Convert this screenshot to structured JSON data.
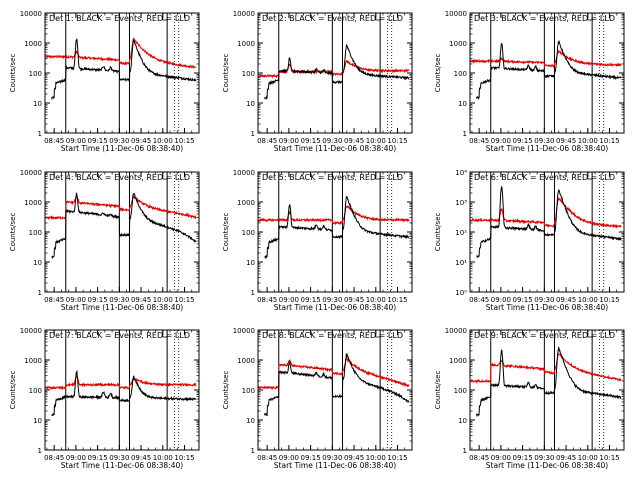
{
  "chart_data": {
    "type": "line",
    "x_tick_labels": [
      "08:45",
      "09:00",
      "09:15",
      "09:30",
      "09:45",
      "10:00",
      "10:15"
    ],
    "x_ticks_minutes": [
      525,
      540,
      555,
      570,
      585,
      600,
      615
    ],
    "xlim_minutes": [
      518.67,
      625
    ],
    "xlabel": "Start Time (11-Dec-06 08:38:40)",
    "ylabel": "Counts/sec",
    "yscale": "log",
    "ylim": [
      1,
      10000
    ],
    "y_tick_labels_linear": [
      "1",
      "10",
      "100",
      "1000",
      "10000"
    ],
    "y_tick_labels_exp": [
      "10⁰",
      "10¹",
      "10²",
      "10³",
      "10⁴"
    ],
    "vertical_lines_solid_minutes": [
      533,
      570,
      577,
      603
    ],
    "vertical_lines_dotted_minutes": [
      608,
      611
    ],
    "series_colors": {
      "events": "#000000",
      "lld": "#dd0000"
    },
    "panels": [
      {
        "title": "Det 1: BLACK = Events, RED = LLD",
        "y_tick_style": "linear",
        "events": {
          "pre": 15,
          "base": 90,
          "start": 150,
          "end": 60,
          "peak1": 1300,
          "peak2": 1200,
          "dip": 60
        },
        "lld": {
          "base": 350,
          "start": 350,
          "end": 150,
          "peak1": 650,
          "peak2": 2500
        }
      },
      {
        "title": "Det 2: BLACK = Events, RED = LLD",
        "y_tick_style": "linear",
        "events": {
          "pre": 15,
          "base": 60,
          "start": 120,
          "end": 70,
          "peak1": 250,
          "peak2": 800,
          "dip": 50
        },
        "lld": {
          "base": 80,
          "start": 110,
          "end": 120,
          "peak1": 200,
          "peak2": 350
        }
      },
      {
        "title": "Det 3: BLACK = Events, RED = LLD",
        "y_tick_style": "linear",
        "events": {
          "pre": 15,
          "base": 100,
          "start": 150,
          "end": 70,
          "peak1": 900,
          "peak2": 1100,
          "dip": 80
        },
        "lld": {
          "base": 250,
          "start": 250,
          "end": 180,
          "peak1": 350,
          "peak2": 900
        }
      },
      {
        "title": "Det 4: BLACK = Events, RED = LLD",
        "y_tick_style": "linear",
        "events": {
          "pre": 15,
          "base": 100,
          "start": 500,
          "end": 60,
          "peak1": 1500,
          "peak2": 1800,
          "dip": 80
        },
        "lld": {
          "base": 300,
          "start": 1000,
          "end": 300,
          "peak1": 1300,
          "peak2": 2000
        }
      },
      {
        "title": "Det 5: BLACK = Events, RED = LLD",
        "y_tick_style": "linear",
        "events": {
          "pre": 15,
          "base": 100,
          "start": 150,
          "end": 70,
          "peak1": 800,
          "peak2": 1500,
          "dip": 70
        },
        "lld": {
          "base": 250,
          "start": 250,
          "end": 250,
          "peak1": 600,
          "peak2": 1200
        }
      },
      {
        "title": "Det 6: BLACK = Events, RED = LLD",
        "y_tick_style": "exp",
        "events": {
          "pre": 15,
          "base": 100,
          "start": 150,
          "end": 60,
          "peak1": 3000,
          "peak2": 2500,
          "dip": 80
        },
        "lld": {
          "base": 250,
          "start": 250,
          "end": 150,
          "peak1": 800,
          "peak2": 2500
        }
      },
      {
        "title": "Det 7: BLACK = Events, RED = LLD",
        "y_tick_style": "linear",
        "events": {
          "pre": 15,
          "base": 55,
          "start": 60,
          "end": 50,
          "peak1": 400,
          "peak2": 280,
          "dip": 45
        },
        "lld": {
          "base": 120,
          "start": 150,
          "end": 150,
          "peak1": 350,
          "peak2": 300
        }
      },
      {
        "title": "Det 8: BLACK = Events, RED = LLD",
        "y_tick_style": "linear",
        "events": {
          "pre": 15,
          "base": 150,
          "start": 400,
          "end": 50,
          "peak1": 600,
          "peak2": 1500,
          "dip": 60
        },
        "lld": {
          "base": 120,
          "start": 700,
          "end": 120,
          "peak1": 600,
          "peak2": 1500
        }
      },
      {
        "title": "Det 9: BLACK = Events, RED = LLD",
        "y_tick_style": "linear",
        "events": {
          "pre": 15,
          "base": 100,
          "start": 150,
          "end": 60,
          "peak1": 2000,
          "peak2": 2500,
          "dip": 80
        },
        "lld": {
          "base": 200,
          "start": 700,
          "end": 200,
          "peak1": 700,
          "peak2": 2500
        }
      }
    ]
  }
}
